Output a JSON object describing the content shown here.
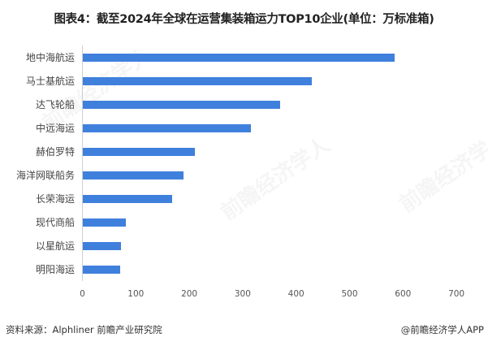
{
  "title": "图表4：截至2024年全球在运营集装箱运力TOP10企业(单位：万标准箱)",
  "footer": {
    "source": "资料来源：Alphliner 前瞻产业研究院",
    "brand": "@前瞻经济学人APP"
  },
  "watermarks": [
    "前瞻经济学人",
    "前瞻经济学人",
    "前瞻经济学人"
  ],
  "colors": {
    "bar": "#4080dd",
    "axis": "#d0d0d0"
  },
  "chart_data": {
    "type": "bar",
    "orientation": "horizontal",
    "title": "图表4：截至2024年全球在运营集装箱运力TOP10企业(单位：万标准箱)",
    "xlabel": "",
    "ylabel": "",
    "categories": [
      "地中海航运",
      "马士基航运",
      "达飞轮船",
      "中远海运",
      "赫伯罗特",
      "海洋网联船务",
      "长荣海运",
      "现代商船",
      "以星航运",
      "明阳海运"
    ],
    "values": [
      584,
      428,
      370,
      315,
      209,
      188,
      167,
      81,
      72,
      70
    ],
    "xlim": [
      0,
      700
    ],
    "xticks": [
      "0",
      "100",
      "200",
      "300",
      "400",
      "500",
      "600",
      "700"
    ],
    "grid": false,
    "legend": null
  }
}
